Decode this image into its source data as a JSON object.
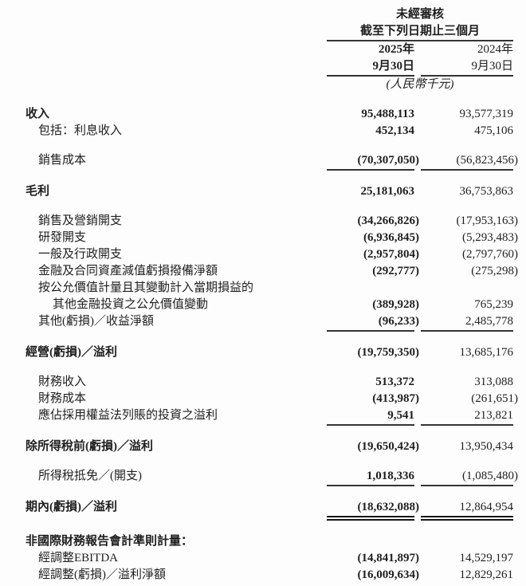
{
  "header": {
    "unaudited_label": "未經審核",
    "period_label": "截至下列日期止三個月",
    "columns": [
      {
        "year": "2025年",
        "date": "9月30日"
      },
      {
        "year": "2024年",
        "date": "9月30日"
      }
    ],
    "unit_note": "(人民幣千元)"
  },
  "rows": [
    {
      "type": "gap"
    },
    {
      "label": "收入",
      "indent": 0,
      "bold": true,
      "values": [
        "95,488,113",
        "93,577,319"
      ]
    },
    {
      "label": "包括：利息收入",
      "indent": 1,
      "bold": false,
      "values": [
        "452,134",
        "475,106"
      ]
    },
    {
      "type": "gap"
    },
    {
      "label": "銷售成本",
      "indent": 1,
      "bold": false,
      "values": [
        "(70,307,050)",
        "(56,823,456)"
      ],
      "rule": "single"
    },
    {
      "type": "gap"
    },
    {
      "label": "毛利",
      "indent": 0,
      "bold": true,
      "values": [
        "25,181,063",
        "36,753,863"
      ]
    },
    {
      "type": "gap"
    },
    {
      "label": "銷售及營銷開支",
      "indent": 1,
      "bold": false,
      "values": [
        "(34,266,826)",
        "(17,953,163)"
      ]
    },
    {
      "label": "研發開支",
      "indent": 1,
      "bold": false,
      "values": [
        "(6,936,845)",
        "(5,293,483)"
      ]
    },
    {
      "label": "一般及行政開支",
      "indent": 1,
      "bold": false,
      "values": [
        "(2,957,804)",
        "(2,797,760)"
      ]
    },
    {
      "label": "金融及合同資產減值虧損撥備淨額",
      "indent": 1,
      "bold": false,
      "values": [
        "(292,777)",
        "(275,298)"
      ]
    },
    {
      "label": "按公允價值計量且其變動計入當期損益的",
      "indent": 1,
      "bold": false,
      "values": [
        "",
        ""
      ]
    },
    {
      "label": "其他金融投資之公允價值變動",
      "indent": 2,
      "bold": false,
      "values": [
        "(389,928)",
        "765,239"
      ]
    },
    {
      "label": "其他(虧損)／收益淨額",
      "indent": 1,
      "bold": false,
      "values": [
        "(96,233)",
        "2,485,778"
      ],
      "rule": "single"
    },
    {
      "type": "gap"
    },
    {
      "label": "經營(虧損)／溢利",
      "indent": 0,
      "bold": true,
      "values": [
        "(19,759,350)",
        "13,685,176"
      ]
    },
    {
      "type": "gap"
    },
    {
      "label": "財務收入",
      "indent": 1,
      "bold": false,
      "values": [
        "513,372",
        "313,088"
      ]
    },
    {
      "label": "財務成本",
      "indent": 1,
      "bold": false,
      "values": [
        "(413,987)",
        "(261,651)"
      ]
    },
    {
      "label": "應佔採用權益法列賬的投資之溢利",
      "indent": 1,
      "bold": false,
      "values": [
        "9,541",
        "213,821"
      ],
      "rule": "single"
    },
    {
      "type": "gap"
    },
    {
      "label": "除所得稅前(虧損)／溢利",
      "indent": 0,
      "bold": true,
      "values": [
        "(19,650,424)",
        "13,950,434"
      ]
    },
    {
      "type": "gap"
    },
    {
      "label": "所得稅抵免／(開支)",
      "indent": 1,
      "bold": false,
      "values": [
        "1,018,336",
        "(1,085,480)"
      ],
      "rule": "single"
    },
    {
      "type": "gap"
    },
    {
      "label": "期內(虧損)／溢利",
      "indent": 0,
      "bold": true,
      "values": [
        "(18,632,088)",
        "12,864,954"
      ],
      "rule": "double"
    },
    {
      "type": "gap"
    },
    {
      "label": "非國際財務報告會計準則計量：",
      "indent": 0,
      "bold": true,
      "values": [
        "",
        ""
      ]
    },
    {
      "label": "經調整EBITDA",
      "indent": 1,
      "bold": false,
      "values": [
        "(14,841,897)",
        "14,529,197"
      ]
    },
    {
      "label": "經調整(虧損)／溢利淨額",
      "indent": 1,
      "bold": false,
      "values": [
        "(16,009,634)",
        "12,829,261"
      ]
    }
  ]
}
